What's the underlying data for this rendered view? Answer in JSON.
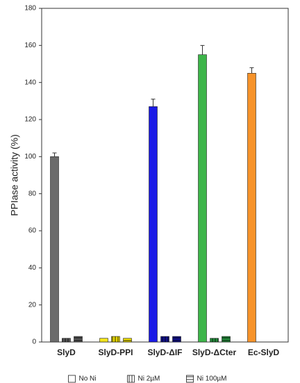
{
  "chart_data": {
    "type": "bar",
    "y_label": "PPIase activity (%)",
    "categories": [
      "SlyD",
      "SlyD-PPI",
      "SlyD-ΔIF",
      "SlyD-ΔCter",
      "Ec-SlyD"
    ],
    "series": [
      {
        "name": "No Ni",
        "pattern": "none",
        "colors": [
          "#6b6b6b",
          "#f2e41c",
          "#1a1ae6",
          "#3db54a",
          "#f7932a"
        ],
        "values": [
          100,
          2,
          127,
          155,
          145
        ],
        "errors": [
          2,
          null,
          4,
          5,
          3
        ]
      },
      {
        "name": "Ni 2µM",
        "pattern": "vertical",
        "colors": [
          "#555555",
          "#e8d800",
          "#10108a",
          "#238a3a",
          "#f7932a"
        ],
        "values": [
          2,
          3,
          3,
          2,
          null
        ]
      },
      {
        "name": "Ni 100µM",
        "pattern": "horizontal",
        "colors": [
          "#555555",
          "#e8d800",
          "#10108a",
          "#238a3a",
          "#f7932a"
        ],
        "values": [
          3,
          2,
          3,
          3,
          null
        ]
      }
    ],
    "ylim": [
      0,
      180
    ],
    "yticks": [
      0,
      20,
      40,
      60,
      80,
      100,
      120,
      140,
      160,
      180
    ]
  }
}
